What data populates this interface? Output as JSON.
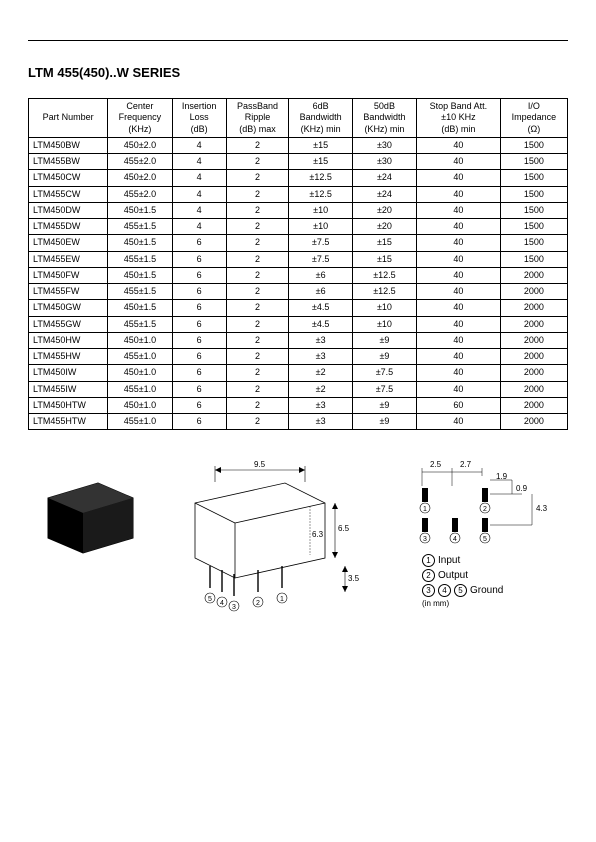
{
  "title": "LTM 455(450)..W SERIES",
  "table": {
    "columns": [
      "Part Number",
      "Center\nFrequency\n(KHz)",
      "Insertion\nLoss\n(dB)",
      "PassBand\nRipple\n(dB) max",
      "6dB\nBandwidth\n(KHz) min",
      "50dB\nBandwidth\n(KHz) min",
      "Stop Band Att.\n±10 KHz\n(dB) min",
      "I/O\nImpedance\n(Ω)"
    ],
    "rows": [
      [
        "LTM450BW",
        "450±2.0",
        "4",
        "2",
        "±15",
        "±30",
        "40",
        "1500"
      ],
      [
        "LTM455BW",
        "455±2.0",
        "4",
        "2",
        "±15",
        "±30",
        "40",
        "1500"
      ],
      [
        "LTM450CW",
        "450±2.0",
        "4",
        "2",
        "±12.5",
        "±24",
        "40",
        "1500"
      ],
      [
        "LTM455CW",
        "455±2.0",
        "4",
        "2",
        "±12.5",
        "±24",
        "40",
        "1500"
      ],
      [
        "LTM450DW",
        "450±1.5",
        "4",
        "2",
        "±10",
        "±20",
        "40",
        "1500"
      ],
      [
        "LTM455DW",
        "455±1.5",
        "4",
        "2",
        "±10",
        "±20",
        "40",
        "1500"
      ],
      [
        "LTM450EW",
        "450±1.5",
        "6",
        "2",
        "±7.5",
        "±15",
        "40",
        "1500"
      ],
      [
        "LTM455EW",
        "455±1.5",
        "6",
        "2",
        "±7.5",
        "±15",
        "40",
        "1500"
      ],
      [
        "LTM450FW",
        "450±1.5",
        "6",
        "2",
        "±6",
        "±12.5",
        "40",
        "2000"
      ],
      [
        "LTM455FW",
        "455±1.5",
        "6",
        "2",
        "±6",
        "±12.5",
        "40",
        "2000"
      ],
      [
        "LTM450GW",
        "450±1.5",
        "6",
        "2",
        "±4.5",
        "±10",
        "40",
        "2000"
      ],
      [
        "LTM455GW",
        "455±1.5",
        "6",
        "2",
        "±4.5",
        "±10",
        "40",
        "2000"
      ],
      [
        "LTM450HW",
        "450±1.0",
        "6",
        "2",
        "±3",
        "±9",
        "40",
        "2000"
      ],
      [
        "LTM455HW",
        "455±1.0",
        "6",
        "2",
        "±3",
        "±9",
        "40",
        "2000"
      ],
      [
        "LTM450IW",
        "450±1.0",
        "6",
        "2",
        "±2",
        "±7.5",
        "40",
        "2000"
      ],
      [
        "LTM455IW",
        "455±1.0",
        "6",
        "2",
        "±2",
        "±7.5",
        "40",
        "2000"
      ],
      [
        "LTM450HTW",
        "450±1.0",
        "6",
        "2",
        "±3",
        "±9",
        "60",
        "2000"
      ],
      [
        "LTM455HTW",
        "455±1.0",
        "6",
        "2",
        "±3",
        "±9",
        "40",
        "2000"
      ]
    ]
  },
  "dims": {
    "w": "9.5",
    "h1": "6.5",
    "h2": "6.3",
    "pin_h": "3.5",
    "p1": "2.5",
    "p2": "2.7",
    "p3": "1.9",
    "p4": "0.9",
    "p5": "4.3"
  },
  "pins": {
    "p1": "Input",
    "p2": "Output",
    "p345": "Ground",
    "unit": "(in mm)"
  }
}
